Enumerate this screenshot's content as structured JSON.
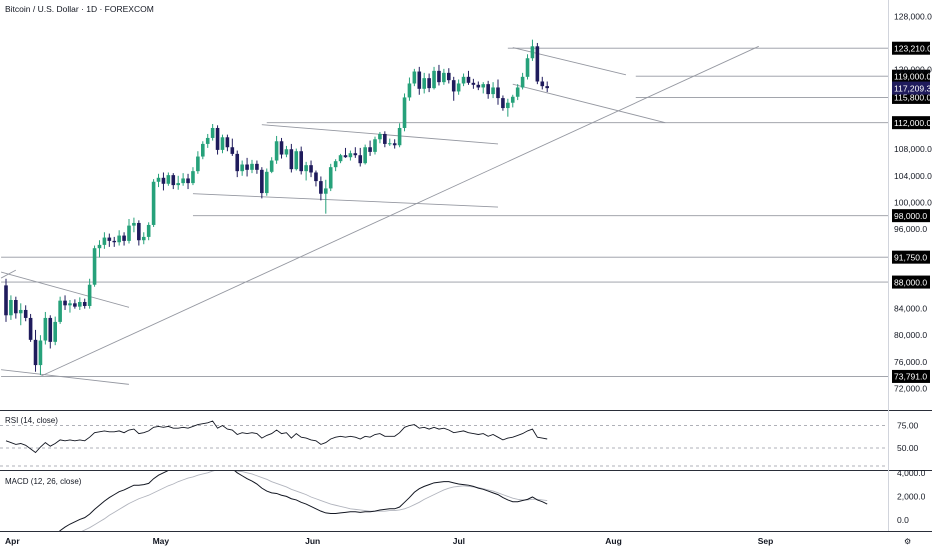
{
  "header": {
    "title": "Bitcoin / U.S. Dollar · 1D · FOREXCOM"
  },
  "indicators": {
    "rsi_label": "RSI (14, close)",
    "macd_label": "MACD (12, 26, close)"
  },
  "colors": {
    "up": "#26a17a",
    "down": "#1f1b5c",
    "line": "#131722",
    "sr": "#787b86",
    "badge": "#000000",
    "price_badge": "#1f1b5c"
  },
  "price_axis": {
    "ticks": [
      {
        "value": 128000,
        "label": "128,000.0"
      },
      {
        "value": 120000,
        "label": "120,000.0"
      },
      {
        "value": 108000,
        "label": "108,000.0"
      },
      {
        "value": 104000,
        "label": "104,000.0"
      },
      {
        "value": 100000,
        "label": "100,000.0"
      },
      {
        "value": 96000,
        "label": "96,000.0"
      },
      {
        "value": 84000,
        "label": "84,000.0"
      },
      {
        "value": 80000,
        "label": "80,000.0"
      },
      {
        "value": 76000,
        "label": "76,000.0"
      },
      {
        "value": 72000,
        "label": "72,000.0"
      }
    ]
  },
  "levels": [
    {
      "value": 123210,
      "label": "123,210.0"
    },
    {
      "value": 119000,
      "label": "119,000.0"
    },
    {
      "value": 115800,
      "label": "115,800.0"
    },
    {
      "value": 112000,
      "label": "112,000.0"
    },
    {
      "value": 98000,
      "label": "98,000.0"
    },
    {
      "value": 91750,
      "label": "91,750.0"
    },
    {
      "value": 88000,
      "label": "88,000.0"
    },
    {
      "value": 73791,
      "label": "73,791.0"
    }
  ],
  "last_price": {
    "value": 117209.3,
    "label": "117,209.3"
  },
  "rsi_axis": [
    {
      "value": 75,
      "label": "75.00"
    },
    {
      "value": 50,
      "label": "50.00"
    }
  ],
  "macd_axis": [
    {
      "value": 4000,
      "label": "4,000.0"
    },
    {
      "value": 2000,
      "label": "2,000.0"
    },
    {
      "value": 0,
      "label": "0.0"
    }
  ],
  "x_axis": [
    {
      "label": "Apr",
      "day": 0
    },
    {
      "label": "May",
      "day": 30
    },
    {
      "label": "Jun",
      "day": 61
    },
    {
      "label": "Jul",
      "day": 91
    },
    {
      "label": "Aug",
      "day": 122
    },
    {
      "label": "Sep",
      "day": 153
    }
  ],
  "chart_data": {
    "type": "candlestick",
    "title": "Bitcoin / U.S. Dollar · 1D · FOREXCOM",
    "x_start": "2025-04-01",
    "ylim": [
      70000,
      130000
    ],
    "candles": [
      [
        0,
        87500,
        88500,
        82000,
        83000
      ],
      [
        1,
        83000,
        86000,
        82300,
        85300
      ],
      [
        2,
        85300,
        85800,
        82500,
        83300
      ],
      [
        3,
        83300,
        84800,
        81500,
        83800
      ],
      [
        4,
        83800,
        84500,
        82100,
        82600
      ],
      [
        5,
        82600,
        83200,
        79000,
        79300
      ],
      [
        6,
        79300,
        80800,
        74500,
        75500
      ],
      [
        7,
        75500,
        80000,
        74000,
        79200
      ],
      [
        8,
        79200,
        83500,
        78600,
        82600
      ],
      [
        9,
        82600,
        83000,
        78000,
        79000
      ],
      [
        10,
        79000,
        82800,
        78500,
        82000
      ],
      [
        11,
        82000,
        85800,
        81700,
        85200
      ],
      [
        12,
        85200,
        86000,
        83800,
        84500
      ],
      [
        13,
        84500,
        85300,
        83400,
        84800
      ],
      [
        14,
        84800,
        85400,
        84000,
        84300
      ],
      [
        15,
        84300,
        85700,
        83800,
        85000
      ],
      [
        16,
        85000,
        85500,
        84000,
        84400
      ],
      [
        17,
        84400,
        88500,
        84000,
        87600
      ],
      [
        18,
        87600,
        93500,
        87300,
        93100
      ],
      [
        19,
        93100,
        94300,
        91700,
        93600
      ],
      [
        20,
        93600,
        95500,
        93000,
        94700
      ],
      [
        21,
        94700,
        95300,
        93300,
        94200
      ],
      [
        22,
        94200,
        94800,
        93300,
        94000
      ],
      [
        23,
        94000,
        95800,
        93500,
        95000
      ],
      [
        24,
        95000,
        95500,
        93500,
        94200
      ],
      [
        25,
        94200,
        97500,
        93800,
        96500
      ],
      [
        26,
        96500,
        97700,
        95500,
        96900
      ],
      [
        27,
        96900,
        97300,
        93500,
        94300
      ],
      [
        28,
        94300,
        95500,
        93700,
        94800
      ],
      [
        29,
        94800,
        97000,
        94300,
        96600
      ],
      [
        30,
        96600,
        103500,
        96300,
        103100
      ],
      [
        31,
        103100,
        104300,
        102300,
        103700
      ],
      [
        32,
        103700,
        104500,
        101800,
        102800
      ],
      [
        33,
        102800,
        104500,
        102500,
        104100
      ],
      [
        34,
        104100,
        104400,
        102000,
        102600
      ],
      [
        35,
        102600,
        104000,
        101900,
        102900
      ],
      [
        36,
        102900,
        104400,
        102500,
        103600
      ],
      [
        37,
        103600,
        104300,
        102000,
        102900
      ],
      [
        38,
        102900,
        105300,
        102600,
        104700
      ],
      [
        39,
        104700,
        107700,
        104300,
        106900
      ],
      [
        40,
        106900,
        109200,
        106500,
        108800
      ],
      [
        41,
        108800,
        110300,
        108200,
        109700
      ],
      [
        42,
        109700,
        111800,
        109300,
        111200
      ],
      [
        43,
        111200,
        111600,
        107200,
        107900
      ],
      [
        44,
        107900,
        110200,
        107400,
        109800
      ],
      [
        45,
        109800,
        110200,
        107700,
        108300
      ],
      [
        46,
        108300,
        109600,
        107000,
        107300
      ],
      [
        47,
        107300,
        107800,
        103800,
        104700
      ],
      [
        48,
        104700,
        106300,
        104000,
        105700
      ],
      [
        49,
        105700,
        106700,
        103900,
        104900
      ],
      [
        50,
        104900,
        106400,
        104400,
        105800
      ],
      [
        51,
        105800,
        106300,
        104300,
        104900
      ],
      [
        52,
        104900,
        105300,
        100600,
        101400
      ],
      [
        53,
        101400,
        105100,
        101000,
        104600
      ],
      [
        54,
        104600,
        106800,
        104400,
        106300
      ],
      [
        55,
        106300,
        110000,
        105800,
        109200
      ],
      [
        56,
        109200,
        109700,
        106600,
        107200
      ],
      [
        57,
        107200,
        108500,
        106800,
        108000
      ],
      [
        58,
        108000,
        108800,
        104500,
        105000
      ],
      [
        59,
        105000,
        108100,
        104800,
        107700
      ],
      [
        60,
        107700,
        108400,
        104200,
        104700
      ],
      [
        61,
        104700,
        106100,
        103300,
        105600
      ],
      [
        62,
        105600,
        106300,
        103800,
        104500
      ],
      [
        63,
        104500,
        104800,
        102400,
        103200
      ],
      [
        64,
        103200,
        103900,
        100300,
        101300
      ],
      [
        65,
        101300,
        103400,
        98300,
        102100
      ],
      [
        66,
        102100,
        105800,
        101700,
        105300
      ],
      [
        67,
        105300,
        106500,
        104700,
        106200
      ],
      [
        68,
        106200,
        107300,
        105900,
        107100
      ],
      [
        69,
        107100,
        108200,
        106700,
        106800
      ],
      [
        70,
        106800,
        107800,
        106300,
        107400
      ],
      [
        71,
        107400,
        108300,
        106700,
        107100
      ],
      [
        72,
        107100,
        108200,
        105400,
        105900
      ],
      [
        73,
        105900,
        108700,
        105700,
        108300
      ],
      [
        74,
        108300,
        109300,
        107000,
        107600
      ],
      [
        75,
        107600,
        109900,
        107200,
        109500
      ],
      [
        76,
        109500,
        110600,
        108900,
        110300
      ],
      [
        77,
        110300,
        110700,
        108300,
        108800
      ],
      [
        78,
        108800,
        109600,
        108500,
        108900
      ],
      [
        79,
        108900,
        109500,
        108100,
        108600
      ],
      [
        80,
        108600,
        111900,
        108300,
        111200
      ],
      [
        81,
        111200,
        116400,
        110700,
        115800
      ],
      [
        82,
        115800,
        118800,
        115300,
        117900
      ],
      [
        83,
        117900,
        120100,
        117500,
        119700
      ],
      [
        84,
        119700,
        120400,
        116200,
        117100
      ],
      [
        85,
        117100,
        119500,
        116400,
        118700
      ],
      [
        86,
        118700,
        119400,
        116600,
        117200
      ],
      [
        87,
        117200,
        120400,
        117000,
        119800
      ],
      [
        88,
        119800,
        120700,
        117600,
        118100
      ],
      [
        89,
        118100,
        120100,
        117700,
        119500
      ],
      [
        90,
        119500,
        120200,
        117900,
        118400
      ],
      [
        91,
        118400,
        118900,
        115300,
        116700
      ],
      [
        92,
        116700,
        118500,
        116200,
        117900
      ],
      [
        93,
        117900,
        119400,
        117500,
        118900
      ],
      [
        94,
        118900,
        119800,
        117700,
        118000
      ],
      [
        95,
        118000,
        118600,
        117100,
        117700
      ],
      [
        96,
        117700,
        118200,
        116900,
        117300
      ],
      [
        97,
        117300,
        118100,
        116400,
        117800
      ],
      [
        98,
        117800,
        118300,
        115600,
        116300
      ],
      [
        99,
        116300,
        118100,
        115700,
        117300
      ],
      [
        100,
        117300,
        118500,
        114700,
        115700
      ],
      [
        101,
        115700,
        116100,
        113800,
        114200
      ],
      [
        102,
        114200,
        115600,
        112900,
        115000
      ],
      [
        103,
        115000,
        116200,
        114300,
        115900
      ],
      [
        104,
        115900,
        117800,
        115400,
        117300
      ],
      [
        105,
        117300,
        119500,
        117000,
        118900
      ],
      [
        106,
        118900,
        122300,
        118500,
        121700
      ],
      [
        107,
        121700,
        124500,
        121300,
        123500
      ],
      [
        108,
        123500,
        124000,
        117800,
        118200
      ],
      [
        109,
        118200,
        118900,
        117000,
        117500
      ],
      [
        110,
        117500,
        118200,
        116600,
        117200
      ]
    ],
    "rsi": [
      58,
      56,
      54,
      55,
      53,
      49,
      45,
      51,
      56,
      52,
      55,
      59,
      58,
      59,
      58,
      59,
      58,
      62,
      67,
      68,
      69,
      68,
      68,
      69,
      67,
      70,
      71,
      66,
      67,
      69,
      73,
      74,
      73,
      74,
      72,
      72,
      73,
      72,
      74,
      76,
      77,
      78,
      80,
      72,
      75,
      71,
      70,
      65,
      67,
      66,
      67,
      66,
      61,
      64,
      66,
      70,
      66,
      67,
      61,
      66,
      62,
      61,
      59,
      58,
      54,
      56,
      60,
      62,
      63,
      62,
      63,
      62,
      60,
      63,
      62,
      65,
      66,
      63,
      63,
      63,
      67,
      73,
      75,
      76,
      72,
      73,
      71,
      73,
      71,
      72,
      70,
      67,
      68,
      69,
      67,
      66,
      65,
      66,
      63,
      65,
      62,
      59,
      61,
      62,
      64,
      66,
      69,
      71,
      62,
      61,
      60
    ],
    "macd": [
      -3900,
      -3500,
      -3150,
      -2800,
      -2500,
      -2300,
      -2350,
      -2150,
      -1750,
      -1550,
      -1300,
      -900,
      -600,
      -350,
      -150,
      50,
      200,
      500,
      900,
      1250,
      1600,
      1900,
      2150,
      2400,
      2550,
      2750,
      2950,
      2950,
      3000,
      3100,
      3500,
      3800,
      4000,
      4200,
      4250,
      4300,
      4350,
      4350,
      4400,
      4500,
      4650,
      4800,
      4950,
      4800,
      4650,
      4500,
      4350,
      4000,
      3750,
      3500,
      3300,
      3050,
      2700,
      2450,
      2300,
      2250,
      2100,
      2000,
      1800,
      1700,
      1500,
      1350,
      1150,
      950,
      750,
      600,
      550,
      550,
      600,
      650,
      700,
      700,
      650,
      700,
      700,
      750,
      850,
      900,
      950,
      950,
      1100,
      1500,
      1900,
      2350,
      2650,
      2850,
      3000,
      3150,
      3200,
      3250,
      3250,
      3150,
      3050,
      3000,
      2950,
      2850,
      2700,
      2600,
      2450,
      2300,
      2150,
      1900,
      1700,
      1550,
      1550,
      1650,
      1750,
      1950,
      1700,
      1550,
      1350
    ],
    "signal": [
      -4600,
      -4400,
      -4200,
      -3900,
      -3650,
      -3350,
      -3150,
      -2900,
      -2650,
      -2400,
      -2150,
      -1900,
      -1700,
      -1450,
      -1250,
      -1050,
      -850,
      -650,
      -400,
      -150,
      100,
      400,
      650,
      900,
      1150,
      1400,
      1600,
      1800,
      1950,
      2100,
      2300,
      2500,
      2700,
      2900,
      3050,
      3250,
      3400,
      3550,
      3650,
      3800,
      3900,
      4000,
      4150,
      4250,
      4250,
      4250,
      4200,
      4150,
      4100,
      4000,
      3900,
      3750,
      3600,
      3450,
      3250,
      3100,
      2950,
      2800,
      2600,
      2450,
      2300,
      2150,
      1950,
      1800,
      1650,
      1500,
      1350,
      1250,
      1150,
      1050,
      950,
      900,
      850,
      800,
      750,
      750,
      750,
      750,
      800,
      800,
      850,
      950,
      1100,
      1300,
      1500,
      1750,
      1950,
      2150,
      2350,
      2550,
      2700,
      2800,
      2850,
      2900,
      2850,
      2800,
      2750,
      2650,
      2550,
      2450,
      2300,
      2150,
      2000,
      1850,
      1750,
      1700,
      1700,
      1750,
      1750,
      1700,
      1650
    ]
  }
}
